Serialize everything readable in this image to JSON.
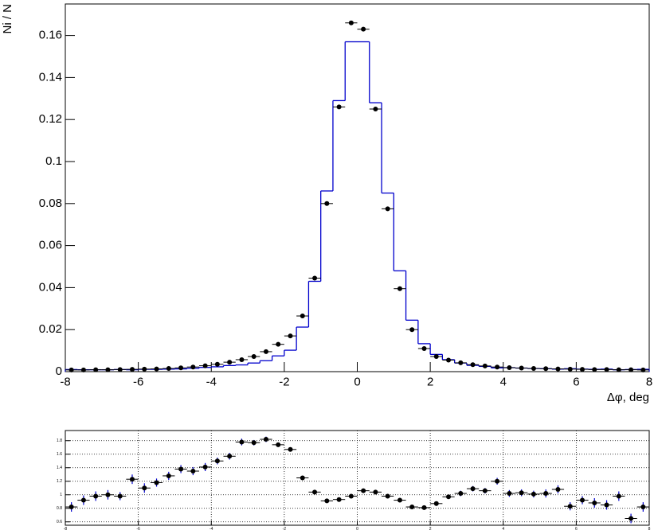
{
  "chart_data": [
    {
      "type": "histogram",
      "xlabel": "Δφ, deg",
      "ylabel": "Ni / N",
      "bins": [
        -8,
        -7.667,
        -7.333,
        -7,
        -6.667,
        -6.333,
        -6,
        -5.667,
        -5.333,
        -5,
        -4.667,
        -4.333,
        -4,
        -3.667,
        -3.333,
        -3,
        -2.667,
        -2.333,
        -2,
        -1.667,
        -1.333,
        -1,
        -0.667,
        -0.333,
        0,
        0.333,
        0.667,
        1,
        1.333,
        1.667,
        2,
        2.333,
        2.667,
        3,
        3.333,
        3.667,
        4,
        4.333,
        4.667,
        5,
        5.333,
        5.667,
        6,
        6.333,
        6.667,
        7,
        7.333,
        7.667,
        8
      ],
      "series": [
        {
          "color": "#0000cc",
          "style": "step",
          "values": [
            0.001,
            0.0009,
            0.0009,
            0.0009,
            0.001,
            0.0009,
            0.0011,
            0.0011,
            0.0012,
            0.0013,
            0.0016,
            0.002,
            0.0023,
            0.0029,
            0.0032,
            0.0041,
            0.0052,
            0.0075,
            0.0102,
            0.0212,
            0.043,
            0.086,
            0.129,
            0.157,
            0.157,
            0.128,
            0.085,
            0.048,
            0.0245,
            0.0133,
            0.0082,
            0.0057,
            0.0041,
            0.003,
            0.0025,
            0.0018,
            0.0019,
            0.0017,
            0.0015,
            0.0014,
            0.0012,
            0.0014,
            0.0012,
            0.0011,
            0.0012,
            0.0009,
            0.001,
            0.0011
          ]
        },
        {
          "color": "#000000",
          "style": "markers",
          "values": [
            0.0008,
            0.0008,
            0.0009,
            0.0009,
            0.001,
            0.0011,
            0.0012,
            0.0013,
            0.0015,
            0.0018,
            0.0022,
            0.0028,
            0.0035,
            0.0045,
            0.0057,
            0.0072,
            0.0095,
            0.013,
            0.017,
            0.0265,
            0.0445,
            0.08,
            0.126,
            0.166,
            0.163,
            0.125,
            0.0775,
            0.0395,
            0.02,
            0.011,
            0.0072,
            0.0055,
            0.0042,
            0.0033,
            0.0027,
            0.0022,
            0.0019,
            0.0017,
            0.0015,
            0.0014,
            0.0013,
            0.0012,
            0.0011,
            0.001,
            0.001,
            0.0009,
            0.0009,
            0.0008
          ]
        }
      ],
      "xlim": [
        -8,
        8
      ],
      "xticks": [
        -8,
        -6,
        -4,
        -2,
        0,
        2,
        4,
        6,
        8
      ],
      "ylim": [
        0,
        0.175
      ],
      "yticks": [
        0,
        0.02,
        0.04,
        0.06,
        0.08,
        0.1,
        0.12,
        0.14,
        0.16
      ]
    },
    {
      "type": "scatter",
      "x": [
        -7.833,
        -7.5,
        -7.167,
        -6.833,
        -6.5,
        -6.167,
        -5.833,
        -5.5,
        -5.167,
        -4.833,
        -4.5,
        -4.167,
        -3.833,
        -3.5,
        -3.167,
        -2.833,
        -2.5,
        -2.167,
        -1.833,
        -1.5,
        -1.167,
        -0.833,
        -0.5,
        -0.167,
        0.167,
        0.5,
        0.833,
        1.167,
        1.5,
        1.833,
        2.167,
        2.5,
        2.833,
        3.167,
        3.5,
        3.833,
        4.167,
        4.5,
        4.833,
        5.167,
        5.5,
        5.833,
        6.167,
        6.5,
        6.833,
        7.167,
        7.5,
        7.833
      ],
      "values": [
        0.82,
        0.92,
        0.98,
        1.0,
        0.98,
        1.23,
        1.1,
        1.18,
        1.28,
        1.38,
        1.35,
        1.41,
        1.5,
        1.57,
        1.78,
        1.77,
        1.82,
        1.74,
        1.67,
        1.25,
        1.04,
        0.91,
        0.93,
        0.98,
        1.06,
        1.04,
        0.98,
        0.92,
        0.82,
        0.81,
        0.87,
        0.97,
        1.02,
        1.09,
        1.06,
        1.2,
        1.02,
        1.03,
        1.01,
        1.02,
        1.08,
        0.83,
        0.92,
        0.88,
        0.85,
        0.98,
        0.65,
        0.82
      ],
      "errors": [
        0.07,
        0.07,
        0.07,
        0.07,
        0.06,
        0.07,
        0.07,
        0.06,
        0.06,
        0.06,
        0.06,
        0.06,
        0.05,
        0.05,
        0.05,
        0.04,
        0.04,
        0.03,
        0.03,
        0.02,
        0.01,
        0.01,
        0.01,
        0.01,
        0.01,
        0.01,
        0.01,
        0.01,
        0.02,
        0.02,
        0.03,
        0.03,
        0.04,
        0.04,
        0.04,
        0.05,
        0.05,
        0.05,
        0.05,
        0.06,
        0.06,
        0.06,
        0.06,
        0.07,
        0.07,
        0.07,
        0.07,
        0.07
      ],
      "color": "#000000",
      "error_color": "#0000cc",
      "xlim": [
        -8,
        8
      ],
      "xticks": [
        -8,
        -6,
        -4,
        -2,
        0,
        2,
        4,
        6,
        8
      ],
      "ylim": [
        0.55,
        1.95
      ],
      "yticks": [
        0.6,
        0.8,
        1,
        1.2,
        1.4,
        1.6,
        1.8
      ],
      "grid": true
    }
  ]
}
